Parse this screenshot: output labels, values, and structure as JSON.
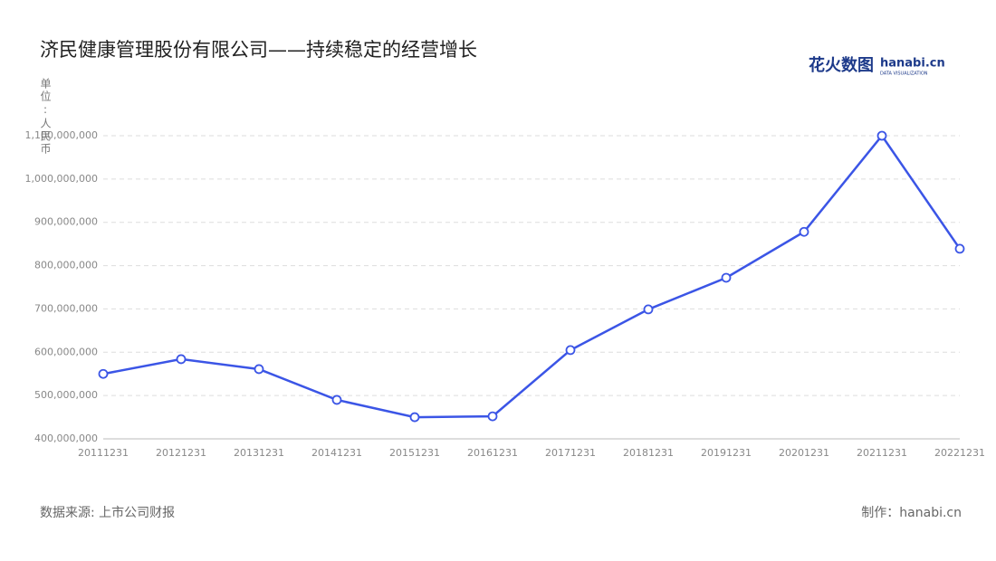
{
  "chart_data": {
    "type": "line",
    "title": "济民健康管理股份有限公司——持续稳定的经营增长",
    "y_label": "单位:人民币",
    "source": "数据来源: 上市公司财报",
    "credit": "制作：hanabi.cn",
    "logo": {
      "text": "花火数图",
      "brand": "hanabi.cn",
      "tagline": "DATA VISUALIZATION"
    },
    "categories": [
      "20111231",
      "20121231",
      "20131231",
      "20141231",
      "20151231",
      "20161231",
      "20171231",
      "20181231",
      "20191231",
      "20201231",
      "20211231",
      "20221231"
    ],
    "values": [
      550000000,
      584000000,
      561000000,
      490000000,
      450000000,
      452000000,
      605000000,
      699000000,
      772000000,
      878000000,
      1100000000,
      839000000
    ],
    "color": "#3b55e6",
    "ylim": [
      400000000,
      1100000000
    ],
    "yticks": [
      {
        "value": 400000000,
        "label": "400,000,000"
      },
      {
        "value": 500000000,
        "label": "500,000,000"
      },
      {
        "value": 600000000,
        "label": "600,000,000"
      },
      {
        "value": 700000000,
        "label": "700,000,000"
      },
      {
        "value": 800000000,
        "label": "800,000,000"
      },
      {
        "value": 900000000,
        "label": "900,000,000"
      },
      {
        "value": 1000000000,
        "label": "1,000,000,000"
      },
      {
        "value": 1100000000,
        "label": "1,100,000,000"
      }
    ],
    "grid": true
  }
}
